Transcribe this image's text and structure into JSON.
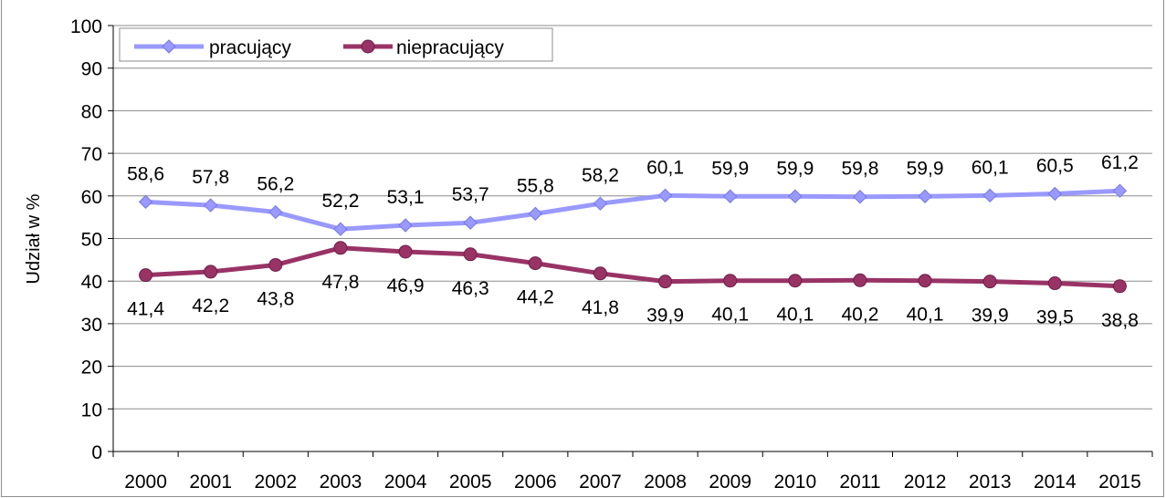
{
  "title": "",
  "chart_data": {
    "type": "line",
    "title": "",
    "xlabel": "",
    "ylabel": "Udział w %",
    "ylim": [
      0,
      100
    ],
    "yticks": [
      0,
      10,
      20,
      30,
      40,
      50,
      60,
      70,
      80,
      90,
      100
    ],
    "grid": "horizontal",
    "legend": "top-left",
    "categories": [
      "2000",
      "2001",
      "2002",
      "2003",
      "2004",
      "2005",
      "2006",
      "2007",
      "2008",
      "2009",
      "2010",
      "2011",
      "2012",
      "2013",
      "2014",
      "2015"
    ],
    "series": [
      {
        "name": "pracujący",
        "color": "#9999ff",
        "marker": "diamond",
        "values": [
          58.6,
          57.8,
          56.2,
          52.2,
          53.1,
          53.7,
          55.8,
          58.2,
          60.1,
          59.9,
          59.9,
          59.8,
          59.9,
          60.1,
          60.5,
          61.2
        ],
        "labels": [
          "58,6",
          "57,8",
          "56,2",
          "52,2",
          "53,1",
          "53,7",
          "55,8",
          "58,2",
          "60,1",
          "59,9",
          "59,9",
          "59,8",
          "59,9",
          "60,1",
          "60,5",
          "61,2"
        ]
      },
      {
        "name": "niepracujący",
        "color": "#993366",
        "marker": "circle",
        "values": [
          41.4,
          42.2,
          43.8,
          47.8,
          46.9,
          46.3,
          44.2,
          41.8,
          39.9,
          40.1,
          40.1,
          40.2,
          40.1,
          39.9,
          39.5,
          38.8
        ],
        "labels": [
          "41,4",
          "42,2",
          "43,8",
          "47,8",
          "46,9",
          "46,3",
          "44,2",
          "41,8",
          "39,9",
          "40,1",
          "40,1",
          "40,2",
          "40,1",
          "39,9",
          "39,5",
          "38,8"
        ]
      }
    ]
  }
}
